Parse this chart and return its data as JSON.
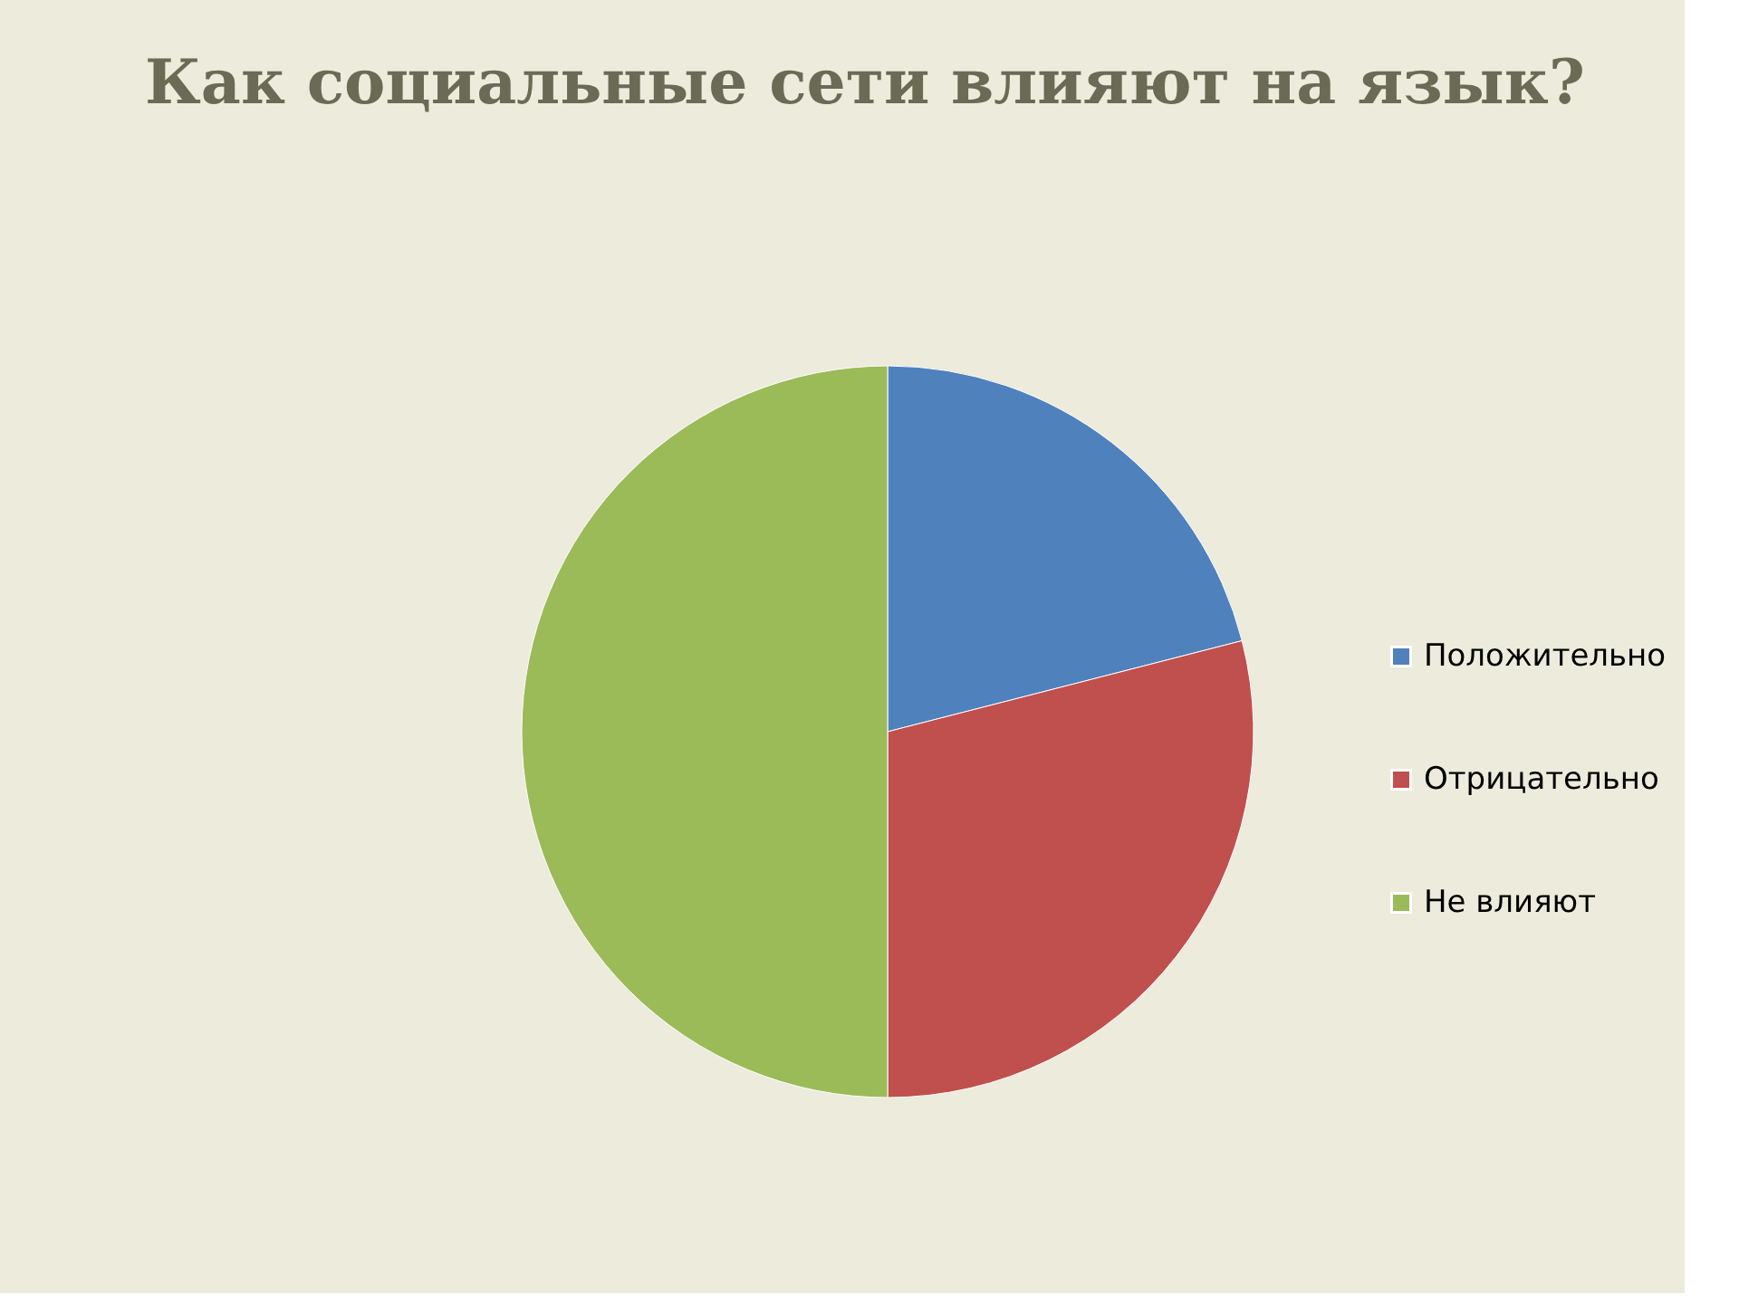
{
  "chart_data": {
    "type": "pie",
    "title": "Как социальные сети влияют на  язык?",
    "categories": [
      "Положительно",
      "Отрицательно",
      "Не влияют"
    ],
    "values": [
      21,
      29,
      50
    ],
    "colors": [
      "#4f81bd",
      "#c0504d",
      "#9bbb59"
    ],
    "legend": "right"
  }
}
